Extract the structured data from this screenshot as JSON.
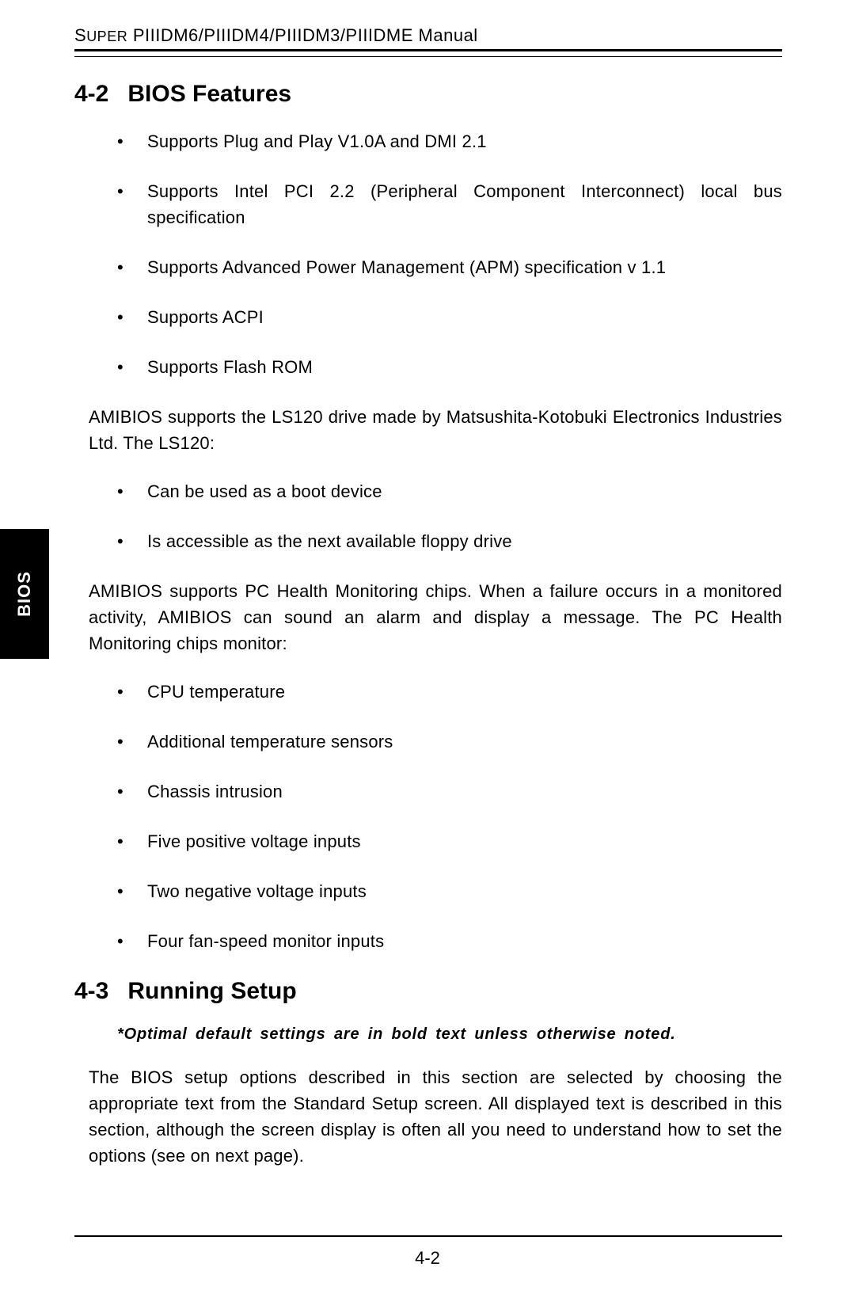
{
  "header": {
    "prefix_caps": "S",
    "small1": "UPER",
    "rest": " PIIIDM6/PIIIDM4/PIIIDM3/PIIIDME Manual"
  },
  "side_tab": "BIOS",
  "section1": {
    "num": "4-2",
    "title": "BIOS Features"
  },
  "bullets1": [
    "Supports Plug and Play V1.0A and DMI 2.1",
    "Supports Intel PCI 2.2 (Peripheral Component Interconnect) local bus specification",
    "Supports Advanced Power Management (APM) specification v 1.1",
    "Supports ACPI",
    "Supports Flash ROM"
  ],
  "para1": "AMIBIOS supports the LS120 drive made by Matsushita-Kotobuki Electronics Industries Ltd.  The LS120:",
  "bullets2": [
    "Can be used as a boot device",
    "Is accessible as the next available floppy drive"
  ],
  "para2": "AMIBIOS supports PC Health Monitoring chips.  When a failure occurs in a monitored activity, AMIBIOS can sound an alarm and display a message.  The PC Health Monitoring chips monitor:",
  "bullets3": [
    "CPU temperature",
    "Additional temperature sensors",
    "Chassis intrusion",
    "Five positive voltage inputs",
    "Two negative voltage inputs",
    "Four fan-speed monitor inputs"
  ],
  "section2": {
    "num": "4-3",
    "title": "Running Setup"
  },
  "note": "*Optimal default settings are in bold text unless otherwise noted.",
  "para3": "The BIOS setup options described in this section are selected by choosing the appropriate text from the Standard Setup screen.  All displayed text is described in this section, although the screen display is often all you need to understand how to set the options (see on next page).",
  "page_number": "4-2"
}
